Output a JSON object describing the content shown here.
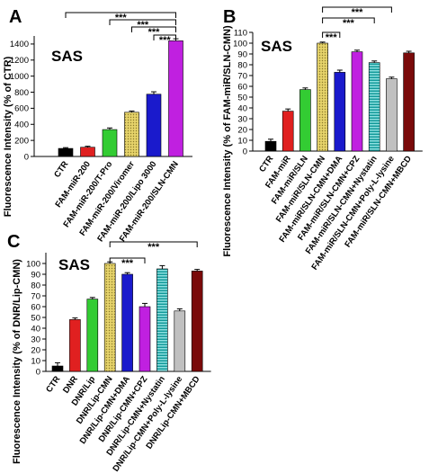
{
  "chart_data": [
    {
      "type": "bar",
      "panel_label": "A",
      "inset_label": "SAS",
      "ylabel": "Fluorescence Intensity (% of CTR)",
      "categories": [
        "CTR",
        "FAM-miR-200",
        "FAM-miR-200/T-Pro",
        "FAM-miR-200/Viromer",
        "FAM-miR-200/Lipo 3000",
        "FAM-miR-200/SLN-CMN"
      ],
      "values": [
        100,
        115,
        335,
        550,
        775,
        1440
      ],
      "errors": [
        10,
        12,
        20,
        15,
        30,
        25
      ],
      "colors": [
        "#000000",
        "#e02020",
        "#33cc33",
        "#c8b44a",
        "#1a1acc",
        "#c020e0"
      ],
      "patterns": [
        "solid",
        "solid",
        "solid",
        "dots",
        "solid",
        "solid"
      ],
      "ylim": [
        0,
        1500
      ],
      "yticks": [
        0,
        200,
        400,
        600,
        800,
        1000,
        1200,
        1400
      ],
      "significance": [
        {
          "from": 0,
          "to": 5,
          "label": "***"
        },
        {
          "from": 2,
          "to": 5,
          "label": "***"
        },
        {
          "from": 3,
          "to": 5,
          "label": "***"
        },
        {
          "from": 4,
          "to": 5,
          "label": "***"
        }
      ]
    },
    {
      "type": "bar",
      "panel_label": "B",
      "inset_label": "SAS",
      "ylabel": "Fluorescence Intensity (% of FAM-miR/SLN-CMN)",
      "categories": [
        "CTR",
        "FAM-miR",
        "FAM-miR/SLN",
        "FAM-miR/SLN-CMN",
        "FAM-miR/SLN-CMN+DMA",
        "FAM-miR/SLN-CMN+CPZ",
        "FAM-miR/SLN-CMN+Nystatin",
        "FAM-miR/SLN-CMN+Poly-L-lysine",
        "FAM-miR/SLN-CMN+MBCD"
      ],
      "values": [
        9,
        37,
        57,
        100,
        73,
        92,
        82,
        67,
        91
      ],
      "errors": [
        2,
        2,
        1.5,
        1,
        2,
        1.5,
        1.5,
        1.5,
        1.5
      ],
      "colors": [
        "#000000",
        "#e02020",
        "#33cc33",
        "#c8b44a",
        "#1a1acc",
        "#c020e0",
        "#20b0b0",
        "#c0c0c0",
        "#7a0a0a"
      ],
      "patterns": [
        "solid",
        "solid",
        "solid",
        "dots",
        "solid",
        "solid",
        "hstripes",
        "solid",
        "solid"
      ],
      "ylim": [
        0,
        110
      ],
      "yticks": [
        0,
        10,
        20,
        30,
        40,
        50,
        60,
        70,
        80,
        90,
        100,
        110
      ],
      "significance": [
        {
          "from": 3,
          "to": 7,
          "label": "***"
        },
        {
          "from": 3,
          "to": 6,
          "label": "***"
        },
        {
          "from": 3,
          "to": 4,
          "label": "***"
        }
      ]
    },
    {
      "type": "bar",
      "panel_label": "C",
      "inset_label": "SAS",
      "ylabel": "Fluorescence Intensity (% of DNR/Lip-CMN)",
      "categories": [
        "CTR",
        "DNR",
        "DNR/Lip",
        "DNR/Lip-CMN",
        "DNR/Lip-CMN+DMA",
        "DNR/Lip-CMN+CPZ",
        "DNR/Lip-CMN+Nystatin",
        "DNR/Lip-CMN+Poly-L-lysine",
        "DNR/Lip-CMN+MBCD"
      ],
      "values": [
        5,
        48,
        67,
        100,
        90,
        60,
        95,
        56,
        93
      ],
      "errors": [
        3,
        1.5,
        1.5,
        1.5,
        1.5,
        3,
        3,
        2,
        1.5
      ],
      "colors": [
        "#000000",
        "#e02020",
        "#33cc33",
        "#c8b44a",
        "#1a1acc",
        "#c020e0",
        "#20b0b0",
        "#c0c0c0",
        "#7a0a0a"
      ],
      "patterns": [
        "solid",
        "solid",
        "solid",
        "dots",
        "solid",
        "solid",
        "hstripes",
        "solid",
        "solid"
      ],
      "ylim": [
        0,
        110
      ],
      "yticks": [
        0,
        10,
        20,
        30,
        40,
        50,
        60,
        70,
        80,
        90,
        100
      ],
      "significance": [
        {
          "from": 3,
          "to": 8,
          "label": "***"
        },
        {
          "from": 3,
          "to": 5,
          "label": "***"
        }
      ]
    }
  ]
}
